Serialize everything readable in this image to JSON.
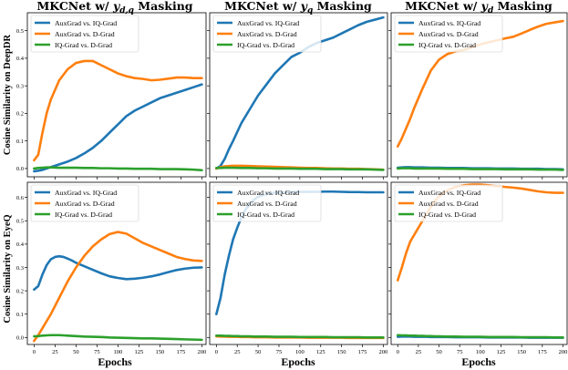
{
  "colors": {
    "blue": "#1f77b4",
    "orange": "#ff7f0e",
    "green": "#2ca02c"
  },
  "column_titles": [
    "MKCNet w/ y_{d,q} Masking",
    "MKCNet w/ y_q Masking",
    "MKCNet w/ y_d Masking"
  ],
  "row_labels": [
    "Cosine Similarity on DeepDR",
    "Cosine Similarity on EyeQ"
  ],
  "xlabel": "Epochs",
  "legend": [
    "AuxGrad vs. IQ-Grad",
    "AuxGrad vs. D-Grad",
    "IQ-Grad vs. D-Grad"
  ],
  "chart_data": [
    {
      "type": "line",
      "title": "MKCNet w/ y_{d,q} Masking",
      "ylabel": "Cosine Similarity on DeepDR",
      "xlabel": "",
      "xlim": [
        -8,
        205
      ],
      "ylim": [
        -0.03,
        0.565
      ],
      "xticks": [
        0,
        25,
        50,
        75,
        100,
        125,
        150,
        175,
        200
      ],
      "xtick_labels_visible": false,
      "yticks": [
        0.0,
        0.1,
        0.2,
        0.3,
        0.4,
        0.5
      ],
      "grid": false,
      "legend_position": "top-left",
      "x": [
        0,
        5,
        10,
        15,
        20,
        30,
        40,
        50,
        60,
        70,
        80,
        90,
        100,
        110,
        120,
        130,
        140,
        150,
        160,
        170,
        180,
        190,
        200
      ],
      "series": [
        {
          "name": "AuxGrad vs. IQ-Grad",
          "color": "#1f77b4",
          "values": [
            -0.01,
            -0.008,
            -0.005,
            0.0,
            0.005,
            0.015,
            0.025,
            0.038,
            0.055,
            0.075,
            0.1,
            0.13,
            0.16,
            0.19,
            0.21,
            0.225,
            0.24,
            0.255,
            0.265,
            0.275,
            0.285,
            0.295,
            0.305
          ]
        },
        {
          "name": "AuxGrad vs. D-Grad",
          "color": "#ff7f0e",
          "values": [
            0.03,
            0.05,
            0.13,
            0.2,
            0.25,
            0.32,
            0.36,
            0.383,
            0.39,
            0.39,
            0.375,
            0.36,
            0.345,
            0.335,
            0.328,
            0.325,
            0.32,
            0.322,
            0.326,
            0.33,
            0.33,
            0.328,
            0.328
          ]
        },
        {
          "name": "IQ-Grad vs. D-Grad",
          "color": "#2ca02c",
          "values": [
            0.0,
            0.002,
            0.003,
            0.004,
            0.004,
            0.003,
            0.003,
            0.003,
            0.002,
            0.002,
            0.001,
            0.001,
            0.0,
            0.0,
            -0.001,
            -0.001,
            -0.001,
            -0.002,
            -0.002,
            -0.002,
            -0.003,
            -0.004,
            -0.006
          ]
        }
      ]
    },
    {
      "type": "line",
      "title": "MKCNet w/ y_q Masking",
      "ylabel": "",
      "xlabel": "",
      "xlim": [
        -8,
        205
      ],
      "ylim": [
        -0.03,
        0.565
      ],
      "xticks": [
        0,
        25,
        50,
        75,
        100,
        125,
        150,
        175,
        200
      ],
      "xtick_labels_visible": false,
      "yticks": [
        0.0,
        0.1,
        0.2,
        0.3,
        0.4,
        0.5
      ],
      "ytick_labels_visible": false,
      "grid": false,
      "legend_position": "top-left",
      "x": [
        0,
        5,
        10,
        15,
        20,
        30,
        40,
        50,
        60,
        70,
        80,
        90,
        100,
        110,
        120,
        130,
        140,
        150,
        160,
        170,
        180,
        190,
        200
      ],
      "series": [
        {
          "name": "AuxGrad vs. IQ-Grad",
          "color": "#1f77b4",
          "values": [
            0.0,
            0.01,
            0.035,
            0.07,
            0.1,
            0.165,
            0.215,
            0.265,
            0.305,
            0.345,
            0.375,
            0.405,
            0.42,
            0.44,
            0.455,
            0.465,
            0.475,
            0.49,
            0.505,
            0.52,
            0.532,
            0.54,
            0.548
          ]
        },
        {
          "name": "AuxGrad vs. D-Grad",
          "color": "#ff7f0e",
          "values": [
            0.0,
            0.005,
            0.008,
            0.009,
            0.01,
            0.01,
            0.009,
            0.008,
            0.007,
            0.006,
            0.005,
            0.004,
            0.003,
            0.002,
            0.002,
            0.001,
            0.0,
            0.0,
            -0.001,
            -0.001,
            -0.002,
            -0.003,
            -0.004
          ]
        },
        {
          "name": "IQ-Grad vs. D-Grad",
          "color": "#2ca02c",
          "values": [
            0.002,
            0.002,
            0.003,
            0.003,
            0.003,
            0.002,
            0.002,
            0.001,
            0.001,
            0.0,
            0.0,
            0.0,
            -0.001,
            -0.001,
            -0.001,
            -0.002,
            -0.002,
            -0.002,
            -0.003,
            -0.003,
            -0.003,
            -0.004,
            -0.005
          ]
        }
      ]
    },
    {
      "type": "line",
      "title": "MKCNet w/ y_d Masking",
      "ylabel": "",
      "xlabel": "",
      "xlim": [
        -8,
        205
      ],
      "ylim": [
        -0.03,
        0.565
      ],
      "xticks": [
        0,
        25,
        50,
        75,
        100,
        125,
        150,
        175,
        200
      ],
      "xtick_labels_visible": false,
      "yticks": [
        0.0,
        0.1,
        0.2,
        0.3,
        0.4,
        0.5
      ],
      "ytick_labels_visible": false,
      "grid": false,
      "legend_position": "top-left",
      "x": [
        0,
        5,
        10,
        15,
        20,
        30,
        40,
        50,
        60,
        70,
        80,
        90,
        100,
        110,
        120,
        130,
        140,
        150,
        160,
        170,
        180,
        190,
        200
      ],
      "series": [
        {
          "name": "AuxGrad vs. IQ-Grad",
          "color": "#1f77b4",
          "values": [
            0.003,
            0.004,
            0.005,
            0.005,
            0.004,
            0.004,
            0.003,
            0.003,
            0.002,
            0.002,
            0.002,
            0.001,
            0.001,
            0.001,
            0.0,
            0.0,
            0.0,
            -0.001,
            -0.001,
            -0.001,
            -0.002,
            -0.002,
            -0.003
          ]
        },
        {
          "name": "AuxGrad vs. D-Grad",
          "color": "#ff7f0e",
          "values": [
            0.08,
            0.11,
            0.145,
            0.18,
            0.22,
            0.29,
            0.355,
            0.395,
            0.415,
            0.425,
            0.43,
            0.44,
            0.45,
            0.458,
            0.465,
            0.472,
            0.478,
            0.49,
            0.503,
            0.515,
            0.525,
            0.53,
            0.535
          ]
        },
        {
          "name": "IQ-Grad vs. D-Grad",
          "color": "#2ca02c",
          "values": [
            0.0,
            0.001,
            0.001,
            0.001,
            0.0,
            0.0,
            0.0,
            0.0,
            -0.001,
            -0.001,
            -0.001,
            -0.002,
            -0.002,
            -0.002,
            -0.002,
            -0.003,
            -0.003,
            -0.003,
            -0.003,
            -0.004,
            -0.004,
            -0.004,
            -0.005
          ]
        }
      ]
    },
    {
      "type": "line",
      "title": "",
      "ylabel": "Cosine Similarity on EyeQ",
      "xlabel": "Epochs",
      "xlim": [
        -8,
        205
      ],
      "ylim": [
        -0.03,
        0.665
      ],
      "xticks": [
        0,
        25,
        50,
        75,
        100,
        125,
        150,
        175,
        200
      ],
      "yticks": [
        0.0,
        0.1,
        0.2,
        0.3,
        0.4,
        0.5,
        0.6
      ],
      "grid": false,
      "legend_position": "top-left",
      "x": [
        0,
        5,
        10,
        15,
        20,
        25,
        30,
        35,
        40,
        45,
        50,
        60,
        70,
        80,
        90,
        100,
        110,
        120,
        130,
        140,
        150,
        160,
        170,
        180,
        190,
        200
      ],
      "series": [
        {
          "name": "AuxGrad vs. IQ-Grad",
          "color": "#1f77b4",
          "values": [
            0.205,
            0.22,
            0.27,
            0.31,
            0.335,
            0.345,
            0.348,
            0.345,
            0.338,
            0.33,
            0.32,
            0.305,
            0.29,
            0.275,
            0.262,
            0.255,
            0.25,
            0.252,
            0.256,
            0.262,
            0.27,
            0.28,
            0.289,
            0.295,
            0.299,
            0.3
          ]
        },
        {
          "name": "AuxGrad vs. D-Grad",
          "color": "#ff7f0e",
          "values": [
            -0.015,
            0.01,
            0.04,
            0.07,
            0.1,
            0.135,
            0.17,
            0.205,
            0.24,
            0.27,
            0.3,
            0.35,
            0.39,
            0.42,
            0.443,
            0.452,
            0.445,
            0.425,
            0.405,
            0.39,
            0.375,
            0.36,
            0.345,
            0.336,
            0.33,
            0.328
          ]
        },
        {
          "name": "IQ-Grad vs. D-Grad",
          "color": "#2ca02c",
          "values": [
            0.005,
            0.006,
            0.008,
            0.009,
            0.01,
            0.01,
            0.01,
            0.009,
            0.008,
            0.007,
            0.006,
            0.004,
            0.003,
            0.002,
            0.0,
            -0.001,
            -0.002,
            -0.003,
            -0.004,
            -0.004,
            -0.005,
            -0.006,
            -0.007,
            -0.008,
            -0.009,
            -0.01
          ]
        }
      ]
    },
    {
      "type": "line",
      "title": "",
      "ylabel": "",
      "xlabel": "Epochs",
      "xlim": [
        -8,
        205
      ],
      "ylim": [
        -0.03,
        0.665
      ],
      "xticks": [
        0,
        25,
        50,
        75,
        100,
        125,
        150,
        175,
        200
      ],
      "yticks": [
        0.0,
        0.1,
        0.2,
        0.3,
        0.4,
        0.5,
        0.6
      ],
      "ytick_labels_visible": false,
      "grid": false,
      "legend_position": "top-left",
      "x": [
        0,
        5,
        10,
        15,
        20,
        25,
        30,
        35,
        40,
        45,
        50,
        60,
        70,
        80,
        90,
        100,
        110,
        120,
        130,
        140,
        150,
        160,
        170,
        180,
        190,
        200
      ],
      "series": [
        {
          "name": "AuxGrad vs. IQ-Grad",
          "color": "#1f77b4",
          "values": [
            0.1,
            0.17,
            0.27,
            0.35,
            0.42,
            0.47,
            0.515,
            0.548,
            0.572,
            0.59,
            0.603,
            0.615,
            0.62,
            0.622,
            0.623,
            0.624,
            0.624,
            0.624,
            0.625,
            0.625,
            0.624,
            0.623,
            0.623,
            0.622,
            0.622,
            0.622
          ]
        },
        {
          "name": "AuxGrad vs. D-Grad",
          "color": "#ff7f0e",
          "values": [
            0.005,
            0.004,
            0.004,
            0.003,
            0.003,
            0.003,
            0.002,
            0.002,
            0.002,
            0.001,
            0.001,
            0.001,
            0.0,
            0.0,
            0.0,
            0.0,
            -0.001,
            -0.001,
            -0.001,
            -0.001,
            -0.001,
            -0.002,
            -0.002,
            -0.002,
            -0.002,
            -0.002
          ]
        },
        {
          "name": "IQ-Grad vs. D-Grad",
          "color": "#2ca02c",
          "values": [
            0.008,
            0.008,
            0.007,
            0.007,
            0.006,
            0.006,
            0.005,
            0.005,
            0.005,
            0.004,
            0.004,
            0.004,
            0.003,
            0.003,
            0.003,
            0.002,
            0.002,
            0.002,
            0.002,
            0.001,
            0.001,
            0.001,
            0.001,
            0.0,
            0.0,
            0.0
          ]
        }
      ]
    },
    {
      "type": "line",
      "title": "",
      "ylabel": "",
      "xlabel": "Epochs",
      "xlim": [
        -8,
        205
      ],
      "ylim": [
        -0.03,
        0.665
      ],
      "xticks": [
        0,
        25,
        50,
        75,
        100,
        125,
        150,
        175,
        200
      ],
      "yticks": [
        0.0,
        0.1,
        0.2,
        0.3,
        0.4,
        0.5,
        0.6
      ],
      "ytick_labels_visible": false,
      "grid": false,
      "legend_position": "top-left",
      "x": [
        0,
        5,
        10,
        15,
        20,
        25,
        30,
        35,
        40,
        45,
        50,
        60,
        70,
        80,
        90,
        100,
        110,
        120,
        130,
        140,
        150,
        160,
        170,
        180,
        190,
        200
      ],
      "series": [
        {
          "name": "AuxGrad vs. IQ-Grad",
          "color": "#1f77b4",
          "values": [
            0.003,
            0.004,
            0.004,
            0.004,
            0.003,
            0.003,
            0.003,
            0.003,
            0.002,
            0.002,
            0.002,
            0.002,
            0.001,
            0.001,
            0.001,
            0.001,
            0.0,
            0.0,
            0.0,
            0.0,
            0.0,
            -0.001,
            -0.001,
            -0.001,
            -0.001,
            -0.001
          ]
        },
        {
          "name": "AuxGrad vs. D-Grad",
          "color": "#ff7f0e",
          "values": [
            0.245,
            0.3,
            0.36,
            0.41,
            0.44,
            0.47,
            0.5,
            0.53,
            0.56,
            0.585,
            0.605,
            0.63,
            0.645,
            0.652,
            0.655,
            0.655,
            0.652,
            0.648,
            0.645,
            0.642,
            0.638,
            0.632,
            0.626,
            0.622,
            0.62,
            0.62
          ]
        },
        {
          "name": "IQ-Grad vs. D-Grad",
          "color": "#2ca02c",
          "values": [
            0.01,
            0.009,
            0.009,
            0.008,
            0.008,
            0.007,
            0.007,
            0.006,
            0.006,
            0.005,
            0.005,
            0.004,
            0.004,
            0.003,
            0.003,
            0.003,
            0.002,
            0.002,
            0.002,
            0.002,
            0.001,
            0.001,
            0.001,
            0.001,
            0.0,
            0.0
          ]
        }
      ]
    }
  ]
}
